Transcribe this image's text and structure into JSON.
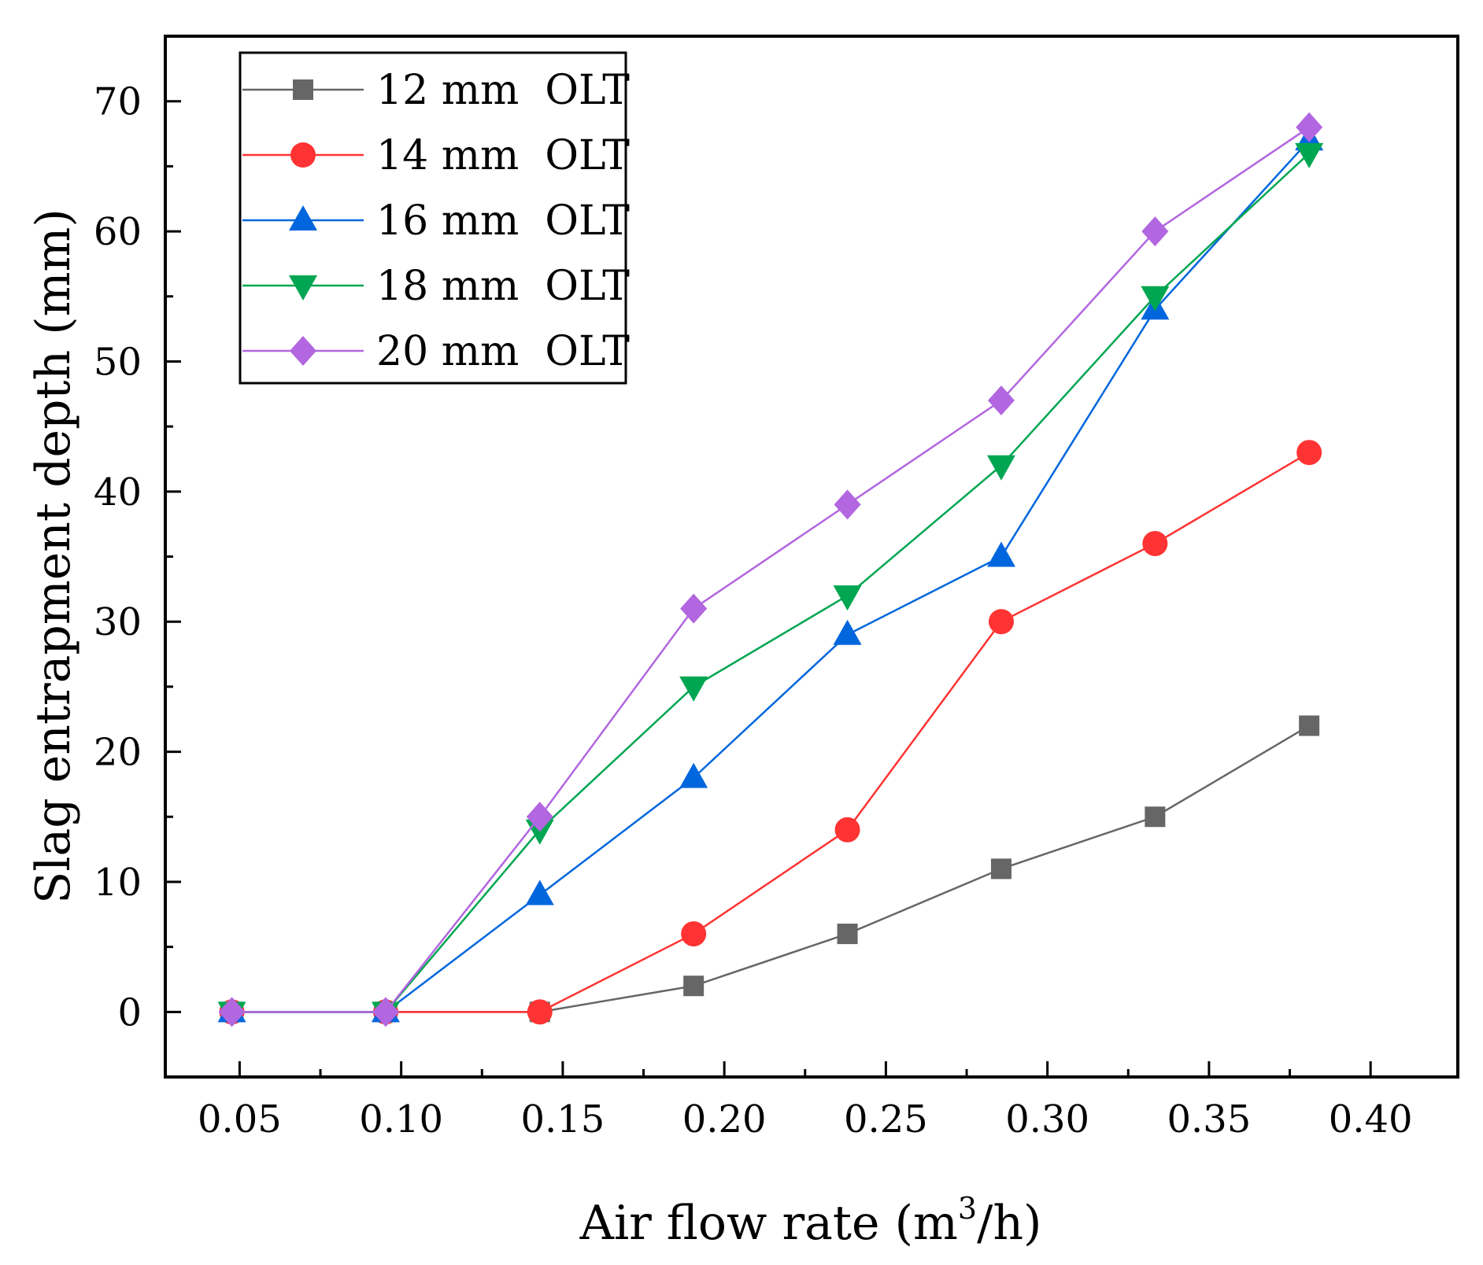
{
  "chart_data": {
    "type": "line",
    "title": "",
    "xlabel": "Air flow rate (m",
    "xlabel_sup": "3",
    "xlabel_end": "/h)",
    "ylabel": "Slag entrapment depth (mm)",
    "xlim": [
      0.027,
      0.427
    ],
    "ylim": [
      -5,
      75
    ],
    "x_ticks": [
      0.05,
      0.1,
      0.15,
      0.2,
      0.25,
      0.3,
      0.35,
      0.4
    ],
    "x_tick_labels": [
      "0.05",
      "0.10",
      "0.15",
      "0.20",
      "0.25",
      "0.30",
      "0.35",
      "0.40"
    ],
    "y_ticks": [
      0,
      10,
      20,
      30,
      40,
      50,
      60,
      70
    ],
    "y_tick_labels": [
      "0",
      "10",
      "20",
      "30",
      "40",
      "50",
      "60",
      "70"
    ],
    "x": [
      0.0476,
      0.0952,
      0.1429,
      0.1905,
      0.2381,
      0.2857,
      0.3333,
      0.381
    ],
    "legend_position": "top-left",
    "series": [
      {
        "name": "12 mm  OLT",
        "color": "#666666",
        "marker": "square",
        "values": [
          0,
          0,
          0,
          2,
          6,
          11,
          15,
          22
        ]
      },
      {
        "name": "14 mm  OLT",
        "color": "#ff3333",
        "marker": "circle",
        "values": [
          0,
          0,
          0,
          6,
          14,
          30,
          36,
          43
        ]
      },
      {
        "name": "16 mm  OLT",
        "color": "#0066dd",
        "marker": "triangle-up",
        "values": [
          0,
          0,
          9,
          18,
          29,
          35,
          54,
          67
        ]
      },
      {
        "name": "18 mm  OLT",
        "color": "#00a651",
        "marker": "triangle-down",
        "values": [
          0,
          0,
          14,
          25,
          32,
          42,
          55,
          66
        ]
      },
      {
        "name": "20 mm  OLT",
        "color": "#b266e0",
        "marker": "diamond",
        "values": [
          0,
          0,
          15,
          31,
          39,
          47,
          60,
          68
        ]
      }
    ]
  }
}
